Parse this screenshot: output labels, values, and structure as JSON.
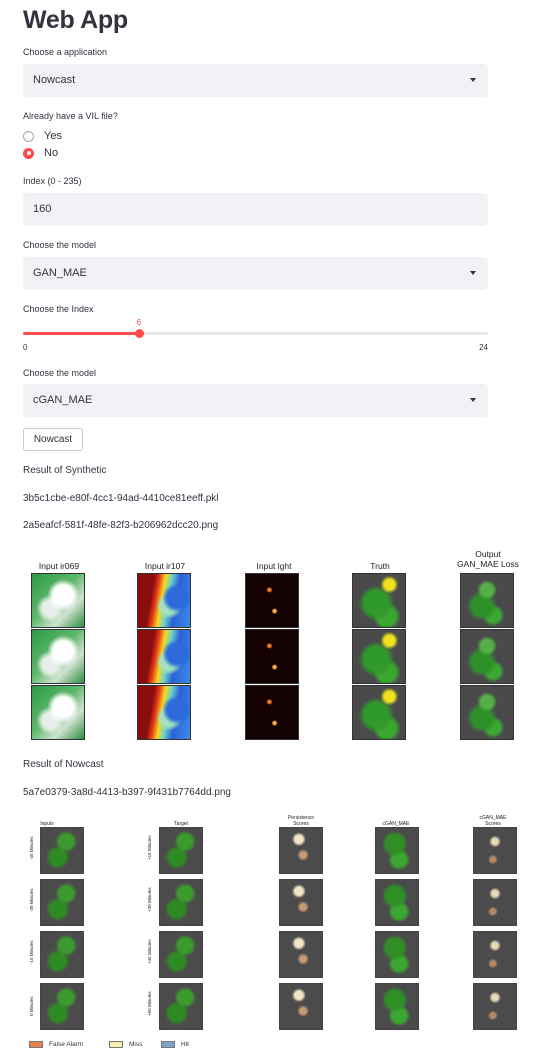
{
  "page": {
    "title": "Web App"
  },
  "application_select": {
    "label": "Choose a application",
    "value": "Nowcast"
  },
  "vil_radio": {
    "label": "Already have a VIL file?",
    "options": [
      {
        "label": "Yes",
        "selected": false
      },
      {
        "label": "No",
        "selected": true
      }
    ]
  },
  "index_input": {
    "label": "Index (0 - 235)",
    "value": "160"
  },
  "model_select_1": {
    "label": "Choose the model",
    "value": "GAN_MAE"
  },
  "index_slider": {
    "label": "Choose the Index",
    "value": "6",
    "min": "0",
    "max": "24",
    "value_num": 6,
    "min_num": 0,
    "max_num": 24
  },
  "model_select_2": {
    "label": "Choose the model",
    "value": "cGAN_MAE"
  },
  "nowcast_button": {
    "label": "Nowcast"
  },
  "synthetic_result": {
    "heading": "Result of Synthetic",
    "file1": "3b5c1cbe-e80f-4cc1-94ad-4410ce81eeff.pkl",
    "file2": "2a5eafcf-581f-48fe-82f3-b206962dcc20.png",
    "figure": {
      "columns": [
        "Input ir069",
        "Input ir107",
        "Input lght",
        "Truth",
        "Output\nGAN_MAE Loss"
      ],
      "rows": 3
    }
  },
  "nowcast_result": {
    "heading": "Result of Nowcast",
    "file": "5a7e0379-3a8d-4413-b397-9f431b7764dd.png",
    "figure": {
      "columns": [
        "Inputs",
        "Target",
        "Persistence\nScores",
        "cGAN_MAE",
        "cGAN_MAE\nScores"
      ],
      "input_rows": [
        "-45 Minutes",
        "-30 Minutes",
        "-15 Minutes",
        "0 Minutes"
      ],
      "target_rows": [
        "+15 Minutes",
        "+30 Minutes",
        "+45 Minutes",
        "+60 Minutes"
      ],
      "legend": [
        {
          "label": "False Alarm",
          "color": "#e8814f"
        },
        {
          "label": "Miss",
          "color": "#f7f1b0"
        },
        {
          "label": "Hit",
          "color": "#7ba7cc"
        }
      ]
    }
  },
  "colors": {
    "accent": "#ff4b4b",
    "widget_bg": "#f0f2f6"
  }
}
